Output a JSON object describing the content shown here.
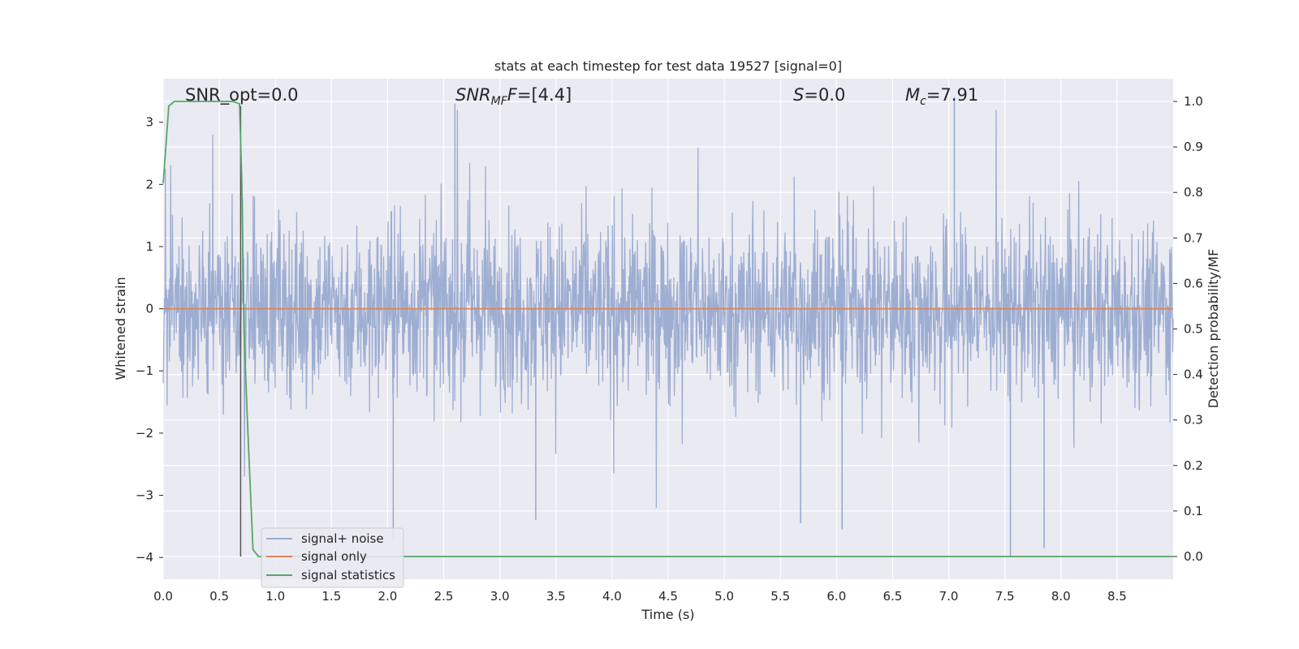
{
  "chart_data": {
    "type": "line",
    "title": "stats at each timestep for test data 19527 [signal=0]",
    "xlabel": "Time (s)",
    "ylabel": "Whitened strain",
    "y2label": "Detection probability/MF",
    "xlim": [
      0.0,
      9.0
    ],
    "ylim": [
      -4.35,
      3.7
    ],
    "y2lim": [
      -0.05,
      1.05
    ],
    "x_ticks": [
      0.0,
      0.5,
      1.0,
      1.5,
      2.0,
      2.5,
      3.0,
      3.5,
      4.0,
      4.5,
      5.0,
      5.5,
      6.0,
      6.5,
      7.0,
      7.5,
      8.0,
      8.5
    ],
    "x_tick_labels": [
      "0.0",
      "0.5",
      "1.0",
      "1.5",
      "2.0",
      "2.5",
      "3.0",
      "3.5",
      "4.0",
      "4.5",
      "5.0",
      "5.5",
      "6.0",
      "6.5",
      "7.0",
      "7.5",
      "8.0",
      "8.5"
    ],
    "y_ticks": [
      -4,
      -3,
      -2,
      -1,
      0,
      1,
      2,
      3
    ],
    "y_tick_labels": [
      "−4",
      "−3",
      "−2",
      "−1",
      "0",
      "1",
      "2",
      "3"
    ],
    "y2_ticks": [
      0.0,
      0.1,
      0.2,
      0.3,
      0.4,
      0.5,
      0.6,
      0.7,
      0.8,
      0.9,
      1.0
    ],
    "y2_tick_labels": [
      "0.0",
      "0.1",
      "0.2",
      "0.3",
      "0.4",
      "0.5",
      "0.6",
      "0.7",
      "0.8",
      "0.9",
      "1.0"
    ],
    "grid": true,
    "legend_position": "lower-left",
    "series": [
      {
        "name": "signal+ noise",
        "axis": "left",
        "color": "#9aabd0",
        "style": "dense noise trace, roughly ±1.5 with peaks to ±3.3",
        "spikes": [
          {
            "x": 2.05,
            "y": -3.7
          },
          {
            "x": 2.6,
            "y": 3.3
          },
          {
            "x": 3.32,
            "y": -3.4
          },
          {
            "x": 5.68,
            "y": -3.45
          },
          {
            "x": 6.05,
            "y": -3.55
          },
          {
            "x": 7.05,
            "y": 3.4
          },
          {
            "x": 7.55,
            "y": -4.0
          },
          {
            "x": 7.85,
            "y": -3.85
          }
        ]
      },
      {
        "name": "signal only",
        "axis": "left",
        "color": "#dd8452",
        "x": [
          0.0,
          9.0
        ],
        "y": [
          0.0,
          0.0
        ]
      },
      {
        "name": "signal statistics",
        "axis": "right",
        "color": "#55a868",
        "x": [
          0.0,
          0.05,
          0.1,
          0.2,
          0.4,
          0.55,
          0.62,
          0.68,
          0.7,
          0.72,
          0.75,
          0.8,
          0.85,
          1.0,
          3.0,
          5.5,
          6.0,
          9.0
        ],
        "y": [
          0.82,
          0.99,
          1.0,
          1.0,
          1.0,
          1.0,
          1.0,
          0.995,
          0.83,
          0.5,
          0.3,
          0.015,
          0.0,
          0.0,
          0.0,
          0.0,
          0.0,
          0.0
        ]
      },
      {
        "name": "",
        "axis": "right",
        "color": "#555555",
        "x": [
          0.69,
          0.69
        ],
        "y": [
          0.0,
          0.99
        ]
      }
    ],
    "annotations": [
      {
        "id": "snr_opt",
        "text": "SNR_opt=0.0"
      },
      {
        "id": "snr_mf_sym",
        "text": "SNR",
        "sub": "MF",
        "rest": "=[4.4]"
      },
      {
        "id": "s",
        "text": "S",
        "rest": "=0.0"
      },
      {
        "id": "mc",
        "text": "M",
        "sub": "c",
        "rest": "=7.91"
      }
    ]
  },
  "colors": {
    "plot_bg": "#eaeaf2",
    "grid": "#ffffff",
    "text": "#262626"
  }
}
